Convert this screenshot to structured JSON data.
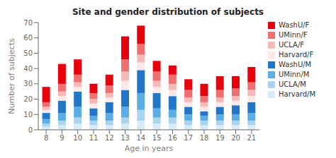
{
  "chart_data": {
    "type": "bar",
    "title": "Site and gender distribution of subjects",
    "xlabel": "Age in years",
    "ylabel": "Number of subjects",
    "categories": [
      "8",
      "9",
      "10",
      "11",
      "12",
      "13",
      "14",
      "15",
      "16",
      "17",
      "18",
      "19",
      "20",
      "21"
    ],
    "stacked": true,
    "legend": "right",
    "ylim": [
      0,
      70
    ],
    "yticks": [
      0,
      10,
      20,
      30,
      40,
      50,
      60,
      70
    ],
    "series": [
      {
        "name": "Harvard/M",
        "color": "#d6eaf8",
        "values": [
          2,
          3,
          4,
          3,
          3,
          4,
          6,
          4,
          4,
          3,
          3,
          3,
          3,
          3
        ]
      },
      {
        "name": "UCLA/M",
        "color": "#a9d4f0",
        "values": [
          2,
          3,
          4,
          3,
          3,
          4,
          7,
          4,
          4,
          3,
          3,
          3,
          3,
          3
        ]
      },
      {
        "name": "UMinn/M",
        "color": "#5baee3",
        "values": [
          3,
          5,
          7,
          3,
          5,
          7,
          11,
          6,
          5,
          4,
          3,
          4,
          4,
          5
        ]
      },
      {
        "name": "WashU/M",
        "color": "#2176c7",
        "values": [
          4,
          8,
          10,
          5,
          7,
          11,
          15,
          10,
          9,
          5,
          3,
          5,
          6,
          7
        ]
      },
      {
        "name": "Harvard/F",
        "color": "#fde8e8",
        "values": [
          2,
          3,
          3,
          3,
          3,
          6,
          5,
          4,
          4,
          3,
          3,
          3,
          3,
          4
        ]
      },
      {
        "name": "UCLA/F",
        "color": "#f7b8b8",
        "values": [
          2,
          3,
          3,
          3,
          3,
          6,
          5,
          4,
          4,
          3,
          3,
          3,
          3,
          4
        ]
      },
      {
        "name": "UMinn/F",
        "color": "#f07070",
        "values": [
          3,
          5,
          5,
          4,
          5,
          8,
          7,
          6,
          6,
          5,
          4,
          5,
          5,
          5
        ]
      },
      {
        "name": "WashU/F",
        "color": "#e8000d",
        "values": [
          10,
          13,
          10,
          6,
          7,
          15,
          12,
          7,
          6,
          7,
          8,
          9,
          8,
          10
        ]
      }
    ]
  }
}
